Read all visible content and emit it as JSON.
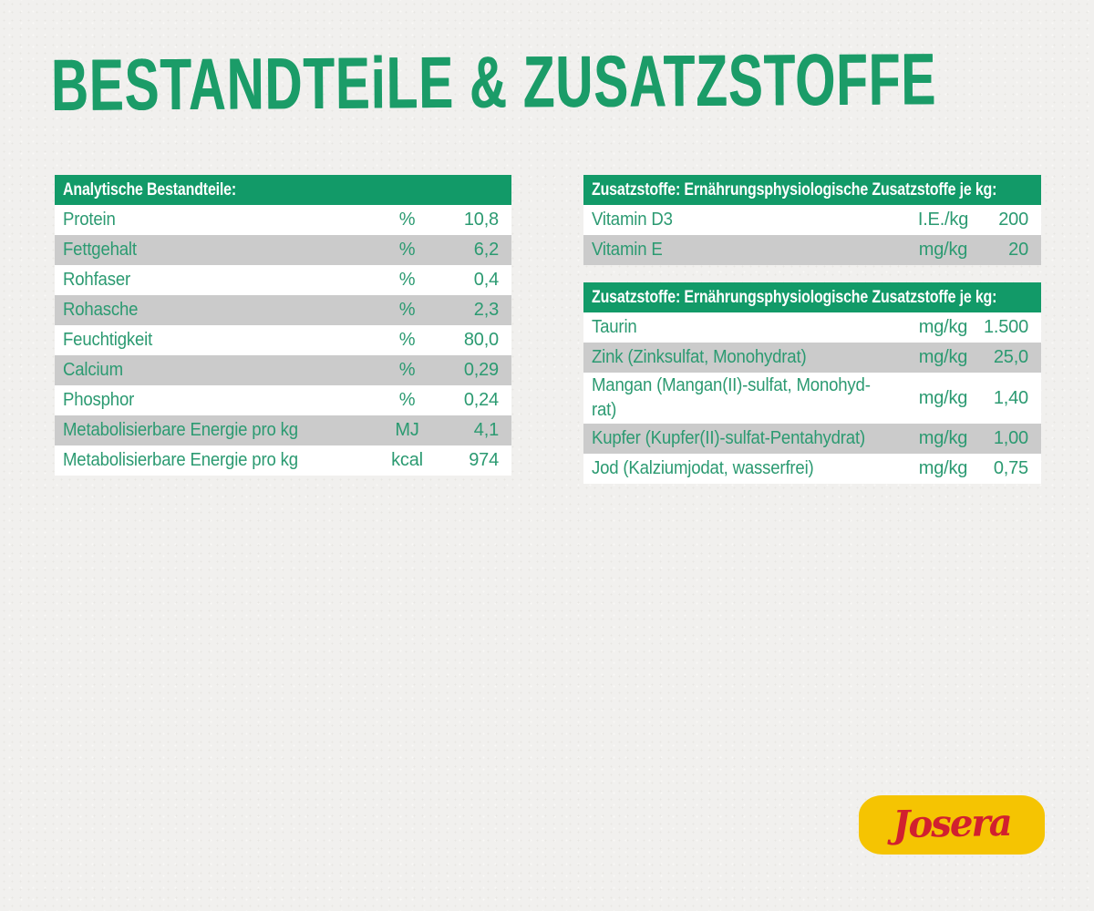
{
  "page": {
    "title": "BESTANDTEiLE & ZUSATZSTOFFE"
  },
  "colors": {
    "background": "#f1f0ee",
    "accent_green": "#129a68",
    "title_green": "#1b9c68",
    "row_text_green": "#2b9a71",
    "row_gray": "#cbcbcb",
    "logo_yellow": "#f5c402",
    "logo_red": "#d1202f"
  },
  "tables": {
    "analytical": {
      "header": "Analytische Bestandteile:",
      "rows": [
        {
          "name": "Protein",
          "unit": "%",
          "value": "10,8"
        },
        {
          "name": "Fettgehalt",
          "unit": "%",
          "value": "6,2"
        },
        {
          "name": "Rohfaser",
          "unit": "%",
          "value": "0,4"
        },
        {
          "name": "Rohasche",
          "unit": "%",
          "value": "2,3"
        },
        {
          "name": "Feuchtigkeit",
          "unit": "%",
          "value": "80,0"
        },
        {
          "name": "Calcium",
          "unit": "%",
          "value": "0,29"
        },
        {
          "name": "Phosphor",
          "unit": "%",
          "value": "0,24"
        },
        {
          "name": "Metabolisierbare Energie pro kg",
          "unit": "MJ",
          "value": "4,1"
        },
        {
          "name": "Metabolisierbare Energie pro kg",
          "unit": "kcal",
          "value": "974"
        }
      ]
    },
    "vitamins": {
      "header": "Zusatzstoffe: Ernährungsphysiologische Zusatzstoffe je kg:",
      "rows": [
        {
          "name": "Vitamin D3",
          "unit": "I.E./kg",
          "value": "200"
        },
        {
          "name": "Vitamin E",
          "unit": "mg/kg",
          "value": "20"
        }
      ]
    },
    "trace": {
      "header": "Zusatzstoffe: Ernährungsphysiologische Zusatzstoffe je kg:",
      "rows": [
        {
          "name": "Taurin",
          "unit": "mg/kg",
          "value": "1.500"
        },
        {
          "name": "Zink (Zinksulfat, Monohydrat)",
          "unit": "mg/kg",
          "value": "25,0"
        },
        {
          "name": "Mangan (Mangan(II)-sulfat, Monohyd-\nrat)",
          "unit": "mg/kg",
          "value": "1,40"
        },
        {
          "name": "Kupfer (Kupfer(II)-sulfat-Pentahydrat)",
          "unit": "mg/kg",
          "value": "1,00"
        },
        {
          "name": "Jod (Kalziumjodat, wasserfrei)",
          "unit": "mg/kg",
          "value": "0,75"
        }
      ]
    }
  },
  "logo": {
    "brand": "Josera"
  }
}
